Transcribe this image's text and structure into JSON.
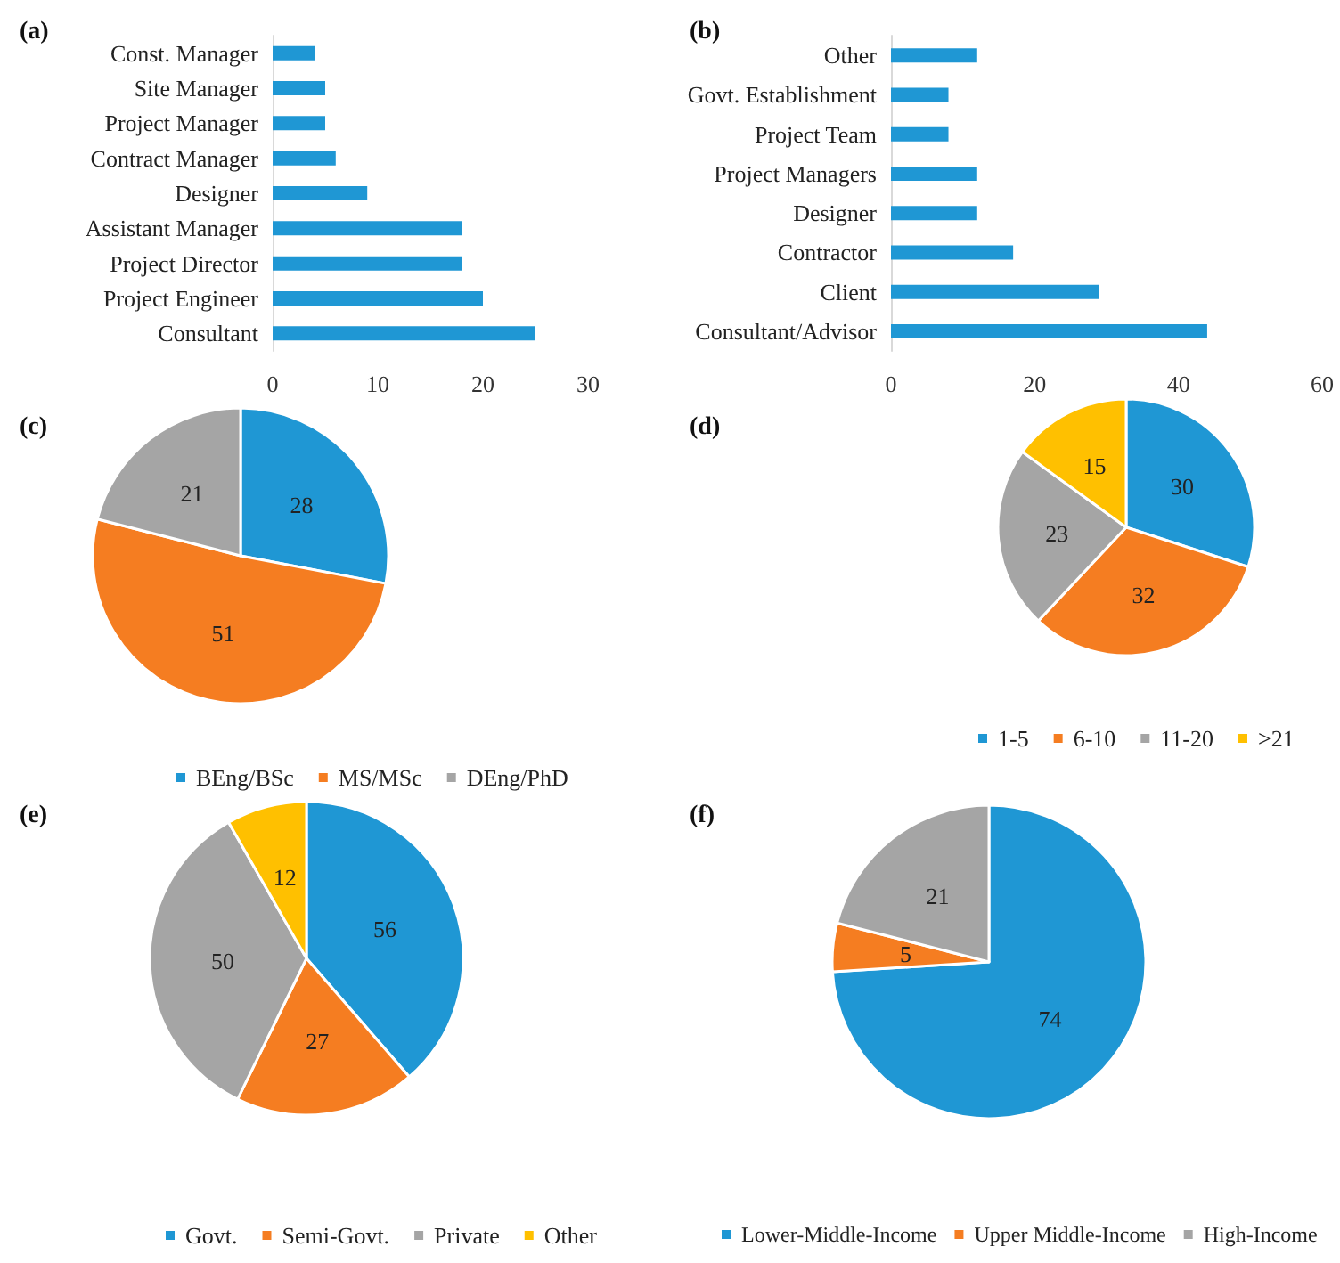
{
  "chart_data": [
    {
      "type": "bar",
      "title": "(a)",
      "orientation": "horizontal",
      "categories": [
        "Const. Manager",
        "Site Manager",
        "Project Manager",
        "Contract Manager",
        "Designer",
        "Assistant Manager",
        "Project Director",
        "Project Engineer",
        "Consultant"
      ],
      "values": [
        4,
        5,
        5,
        6,
        9,
        18,
        18,
        20,
        25
      ],
      "color": "#1f97d4",
      "xlim": [
        0,
        30
      ],
      "xticks": [
        0,
        10,
        20,
        30
      ],
      "grid": false,
      "legend": false
    },
    {
      "type": "bar",
      "title": "(b)",
      "orientation": "horizontal",
      "categories": [
        "Other",
        "Govt. Establishment",
        "Project Team",
        "Project Managers",
        "Designer",
        "Contractor",
        "Client",
        "Consultant/Advisor"
      ],
      "values": [
        12,
        8,
        8,
        12,
        12,
        17,
        29,
        44
      ],
      "color": "#1f97d4",
      "xlim": [
        0,
        60
      ],
      "xticks": [
        0,
        20,
        40,
        60
      ],
      "grid": false,
      "legend": false
    },
    {
      "type": "pie",
      "title": "(c)",
      "categories": [
        "BEng/BSc",
        "MS/MSc",
        "DEng/PhD"
      ],
      "values": [
        28,
        51,
        21
      ],
      "colors": [
        "#1f97d4",
        "#f57d21",
        "#a5a5a5"
      ],
      "data_labels": true,
      "legend": "bottom"
    },
    {
      "type": "pie",
      "title": "(d)",
      "categories": [
        "1-5",
        "6-10",
        "11-20",
        ">21"
      ],
      "values": [
        30,
        32,
        23,
        15
      ],
      "colors": [
        "#1f97d4",
        "#f57d21",
        "#a5a5a5",
        "#ffc000"
      ],
      "data_labels": true,
      "legend": "bottom"
    },
    {
      "type": "pie",
      "title": "(e)",
      "categories": [
        "Govt.",
        "Semi-Govt.",
        "Private",
        "Other"
      ],
      "values": [
        56,
        27,
        50,
        12
      ],
      "colors": [
        "#1f97d4",
        "#f57d21",
        "#a5a5a5",
        "#ffc000"
      ],
      "data_labels": true,
      "legend": "bottom"
    },
    {
      "type": "pie",
      "title": "(f)",
      "categories": [
        "Lower-Middle-Income",
        "Upper Middle-Income",
        "High-Income"
      ],
      "values": [
        74,
        5,
        21
      ],
      "colors": [
        "#1f97d4",
        "#f57d21",
        "#a5a5a5"
      ],
      "data_labels": true,
      "legend": "bottom"
    }
  ]
}
